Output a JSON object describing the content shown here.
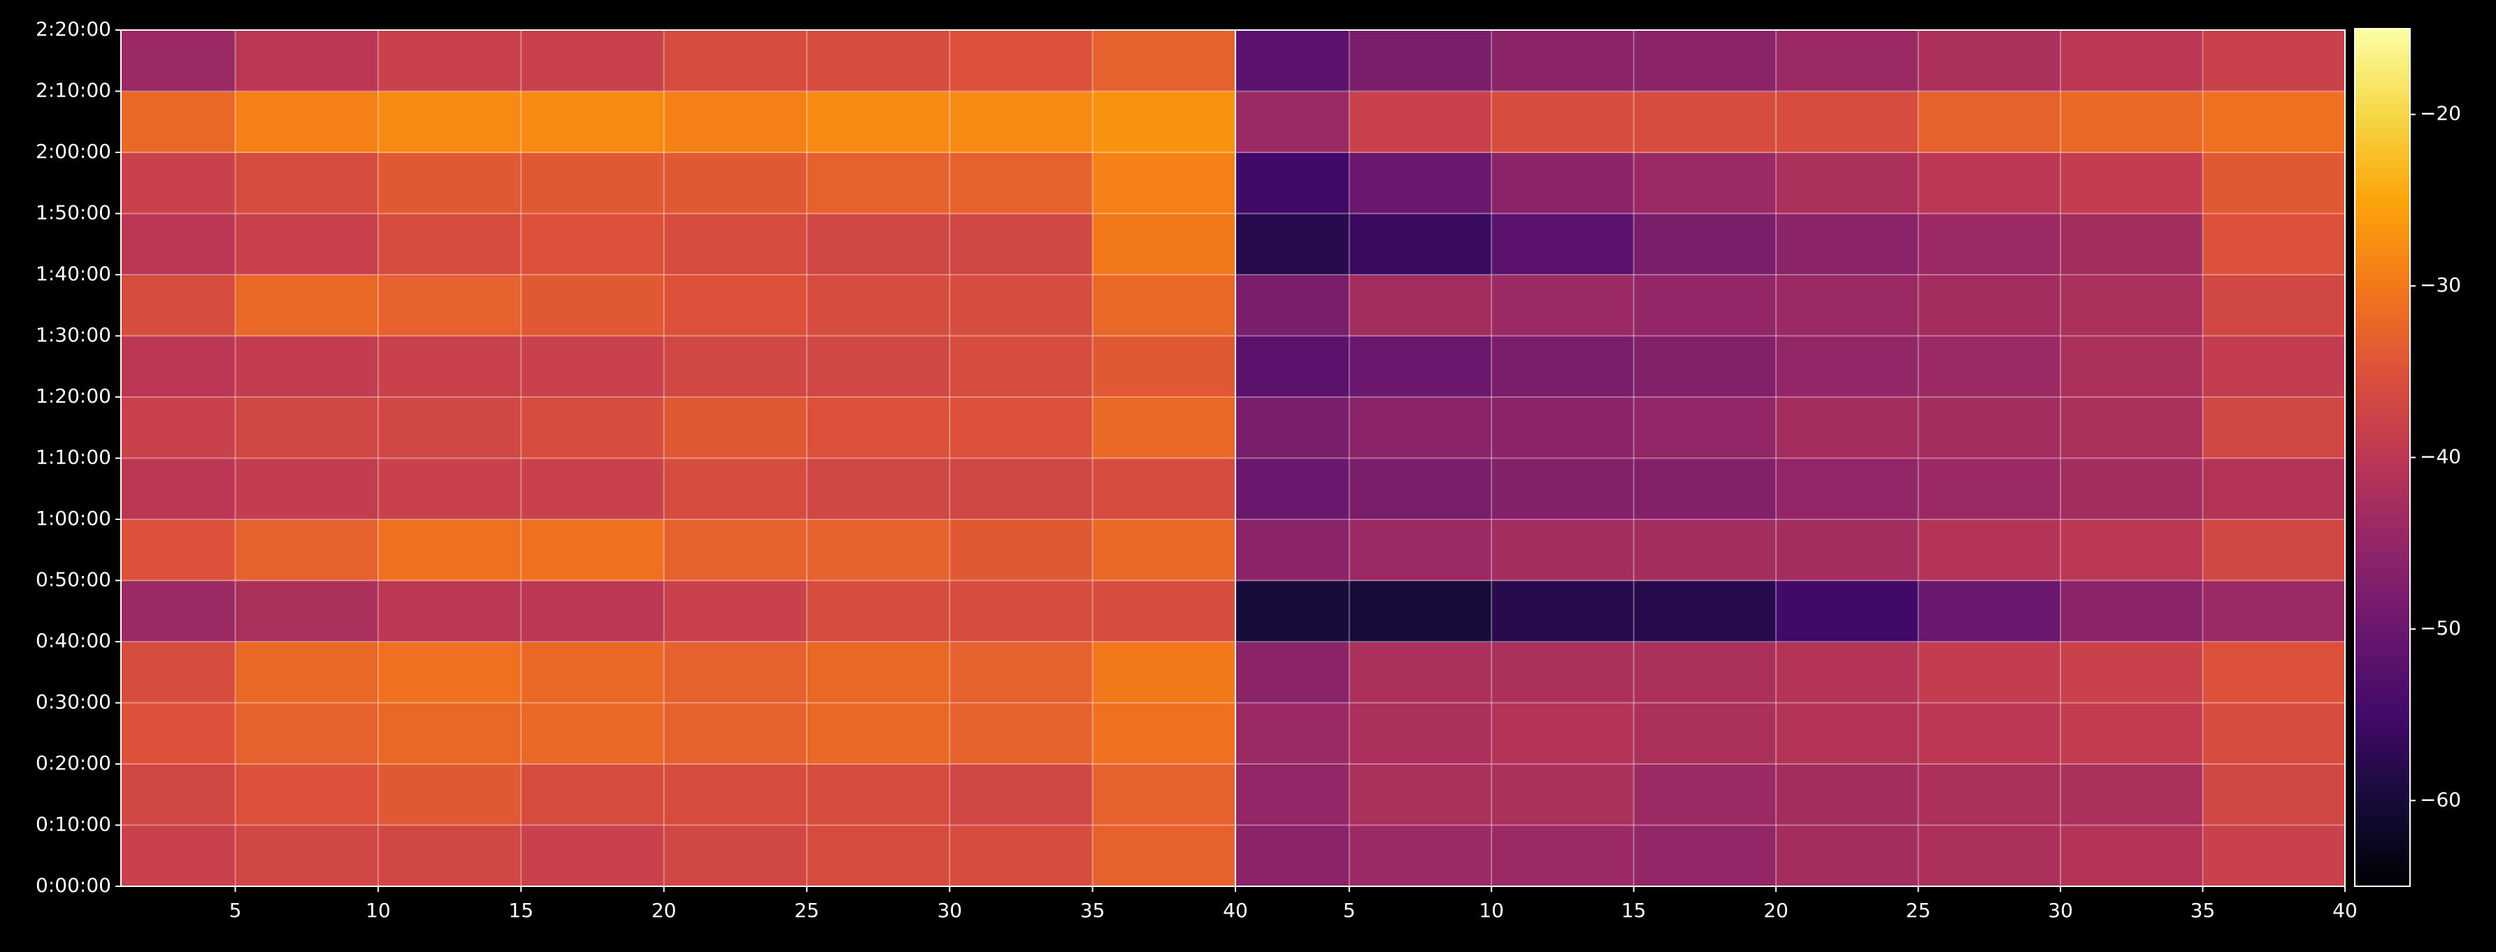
{
  "chart_data": [
    {
      "type": "heatmap",
      "colorbar": 2,
      "x": [
        1,
        5,
        10,
        15,
        20,
        25,
        30,
        35,
        40
      ],
      "y": [
        0,
        600,
        1200,
        1800,
        2400,
        3000,
        3600,
        4200,
        4800,
        5400,
        6000,
        6600,
        7200,
        7800,
        8400
      ],
      "values": [
        [
          -38,
          -37,
          -37,
          -38,
          -37,
          -36,
          -36,
          -33
        ],
        [
          -37,
          -35,
          -34,
          -36,
          -36,
          -36,
          -37,
          -33
        ],
        [
          -35,
          -33,
          -32,
          -32,
          -33,
          -32,
          -33,
          -31
        ],
        [
          -36,
          -32,
          -31,
          -32,
          -33,
          -32,
          -33,
          -30
        ],
        [
          -44,
          -42,
          -40,
          -40,
          -38,
          -36,
          -36,
          -36
        ],
        [
          -35,
          -33,
          -31,
          -31,
          -33,
          -33,
          -34,
          -32
        ],
        [
          -40,
          -39,
          -38,
          -38,
          -36,
          -37,
          -37,
          -36
        ],
        [
          -38,
          -37,
          -37,
          -36,
          -34,
          -35,
          -35,
          -32
        ],
        [
          -40,
          -39,
          -38,
          -38,
          -37,
          -37,
          -36,
          -34
        ],
        [
          -36,
          -32,
          -33,
          -34,
          -35,
          -36,
          -36,
          -32
        ],
        [
          -40,
          -38,
          -36,
          -35,
          -36,
          -37,
          -37,
          -30
        ],
        [
          -38,
          -36,
          -34,
          -34,
          -34,
          -33,
          -33,
          -29
        ],
        [
          -32,
          -29,
          -28,
          -28,
          -29,
          -28,
          -28,
          -27
        ],
        [
          -44,
          -40,
          -38,
          -38,
          -36,
          -36,
          -35,
          -33
        ]
      ],
      "xlim": [
        1,
        40
      ],
      "xticks": [
        5,
        10,
        15,
        20,
        25,
        30,
        35,
        40
      ],
      "ylim": [
        0,
        8400
      ],
      "yticks": [
        {
          "value": 0,
          "label": "0:00:00"
        },
        {
          "value": 600,
          "label": "0:10:00"
        },
        {
          "value": 1200,
          "label": "0:20:00"
        },
        {
          "value": 1800,
          "label": "0:30:00"
        },
        {
          "value": 2400,
          "label": "0:40:00"
        },
        {
          "value": 3000,
          "label": "0:50:00"
        },
        {
          "value": 3600,
          "label": "1:00:00"
        },
        {
          "value": 4200,
          "label": "1:10:00"
        },
        {
          "value": 4800,
          "label": "1:20:00"
        },
        {
          "value": 5400,
          "label": "1:30:00"
        },
        {
          "value": 6000,
          "label": "1:40:00"
        },
        {
          "value": 6600,
          "label": "1:50:00"
        },
        {
          "value": 7200,
          "label": "2:00:00"
        },
        {
          "value": 7800,
          "label": "2:10:00"
        },
        {
          "value": 8400,
          "label": "2:20:00"
        }
      ],
      "grid": true
    },
    {
      "type": "heatmap",
      "colorbar": 2,
      "x": [
        1,
        5,
        10,
        15,
        20,
        25,
        30,
        35,
        40
      ],
      "y": [
        0,
        600,
        1200,
        1800,
        2400,
        3000,
        3600,
        4200,
        4800,
        5400,
        6000,
        6600,
        7200,
        7800,
        8400
      ],
      "values": [
        [
          -46,
          -44,
          -44,
          -45,
          -43,
          -42,
          -41,
          -38
        ],
        [
          -45,
          -42,
          -42,
          -44,
          -43,
          -42,
          -42,
          -37
        ],
        [
          -44,
          -42,
          -41,
          -42,
          -41,
          -40,
          -39,
          -36
        ],
        [
          -46,
          -42,
          -42,
          -42,
          -41,
          -39,
          -38,
          -35
        ],
        [
          -60,
          -60,
          -58,
          -58,
          -55,
          -50,
          -46,
          -44
        ],
        [
          -46,
          -44,
          -43,
          -43,
          -43,
          -41,
          -40,
          -37
        ],
        [
          -50,
          -48,
          -47,
          -47,
          -45,
          -44,
          -43,
          -41
        ],
        [
          -48,
          -46,
          -46,
          -45,
          -43,
          -43,
          -42,
          -37
        ],
        [
          -52,
          -50,
          -48,
          -47,
          -45,
          -44,
          -42,
          -39
        ],
        [
          -48,
          -43,
          -44,
          -45,
          -44,
          -43,
          -42,
          -37
        ],
        [
          -58,
          -56,
          -52,
          -48,
          -46,
          -44,
          -43,
          -35
        ],
        [
          -55,
          -50,
          -46,
          -44,
          -42,
          -40,
          -39,
          -34
        ],
        [
          -44,
          -38,
          -36,
          -36,
          -36,
          -33,
          -32,
          -31
        ],
        [
          -52,
          -48,
          -46,
          -46,
          -44,
          -42,
          -40,
          -38
        ]
      ],
      "xlim": [
        1,
        40
      ],
      "xticks": [
        5,
        10,
        15,
        20,
        25,
        30,
        35,
        40
      ],
      "ylim": [
        0,
        8400
      ],
      "grid": true
    },
    {
      "type": "colorbar",
      "colormap": "inferno",
      "clim": [
        -65,
        -15
      ],
      "ticks": [
        {
          "value": -20,
          "label": "−20"
        },
        {
          "value": -30,
          "label": "−30"
        },
        {
          "value": -40,
          "label": "−40"
        },
        {
          "value": -50,
          "label": "−50"
        },
        {
          "value": -60,
          "label": "−60"
        }
      ]
    }
  ]
}
